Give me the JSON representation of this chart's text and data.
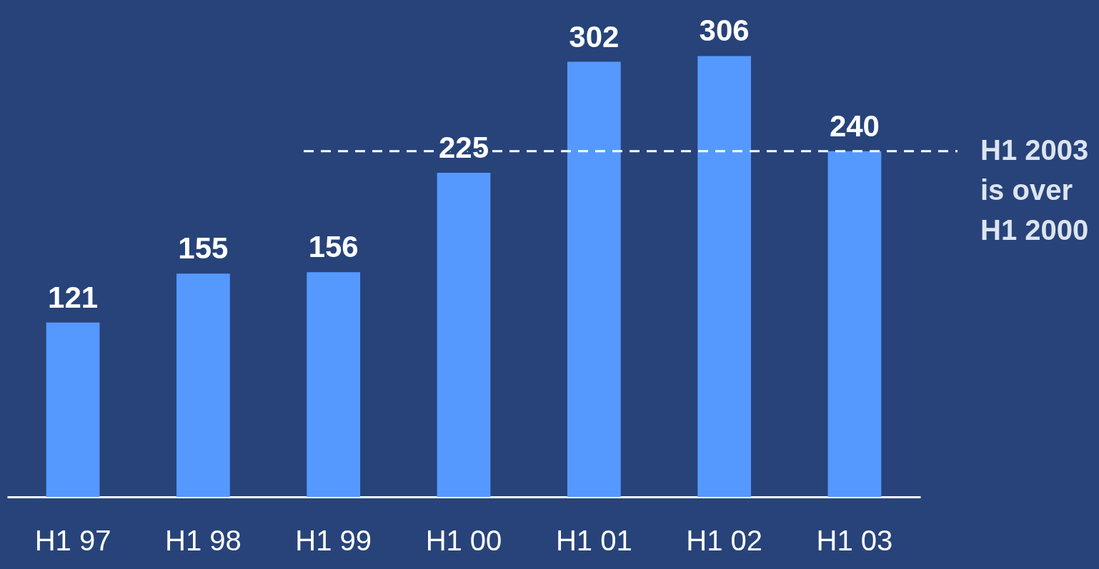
{
  "chart_data": {
    "type": "bar",
    "categories": [
      "H1 97",
      "H1 98",
      "H1 99",
      "H1 00",
      "H1 01",
      "H1 02",
      "H1 03"
    ],
    "values": [
      121,
      155,
      156,
      225,
      302,
      306,
      240
    ],
    "color": "#5599ff",
    "data_labels": true,
    "grid": false,
    "tick_labels": "x",
    "ref_lines": [
      {
        "axis": "y",
        "value": 240,
        "label": "H1 2003\nis over\nH1 2000",
        "color": "#ffffff",
        "line_style": "dashed"
      }
    ]
  }
}
